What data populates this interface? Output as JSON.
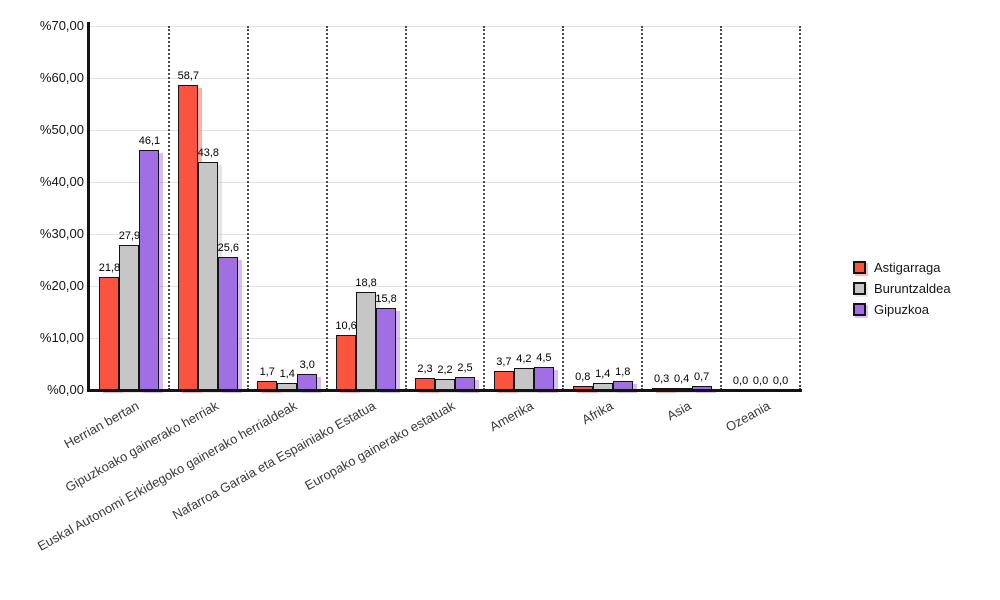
{
  "chart_data": {
    "type": "bar",
    "title": "",
    "xlabel": "",
    "ylabel": "",
    "categories": [
      "Herrian bertan",
      "Gipuzkoako gainerako herriak",
      "Euskal Autonomi Erkidegoko gainerako herrialdeak",
      "Nafarroa Garaia eta Espainiako Estatua",
      "Europako gainerako estatuak",
      "Amerika",
      "Afrika",
      "Asia",
      "Ozeania"
    ],
    "series": [
      {
        "name": "Astigarraga",
        "color": "#fa5440",
        "values": [
          21.8,
          58.7,
          1.7,
          10.6,
          2.3,
          3.7,
          0.8,
          0.3,
          0.0
        ],
        "value_labels": [
          "21,8",
          "58,7",
          "1,7",
          "10,6",
          "2,3",
          "3,7",
          "0,8",
          "0,3",
          "0,0"
        ]
      },
      {
        "name": "Buruntzaldea",
        "color": "#c6c6c6",
        "values": [
          27.9,
          43.8,
          1.4,
          18.8,
          2.2,
          4.2,
          1.4,
          0.4,
          0.0
        ],
        "value_labels": [
          "27,9",
          "43,8",
          "1,4",
          "18,8",
          "2,2",
          "4,2",
          "1,4",
          "0,4",
          "0,0"
        ]
      },
      {
        "name": "Gipuzkoa",
        "color": "#a06fe4",
        "values": [
          46.1,
          25.6,
          3.0,
          15.8,
          2.5,
          4.5,
          1.8,
          0.7,
          0.0
        ],
        "value_labels": [
          "46,1",
          "25,6",
          "3,0",
          "15,8",
          "2,5",
          "4,5",
          "1,8",
          "0,7",
          "0,0"
        ]
      }
    ],
    "y_ticks": [
      "%0,00",
      "%10,00",
      "%20,00",
      "%30,00",
      "%40,00",
      "%50,00",
      "%60,00",
      "%70,00"
    ],
    "ylim": [
      0,
      70
    ],
    "y_step": 10,
    "grid": {
      "horizontal": "solid",
      "vertical": "dotted"
    },
    "legend_position": "right",
    "colors": {
      "axis": "#141414",
      "gridline": "#e2e2e2",
      "separator": "#4a4a4a",
      "category_text": "#3a3a3a",
      "value_text": "#000000"
    }
  }
}
